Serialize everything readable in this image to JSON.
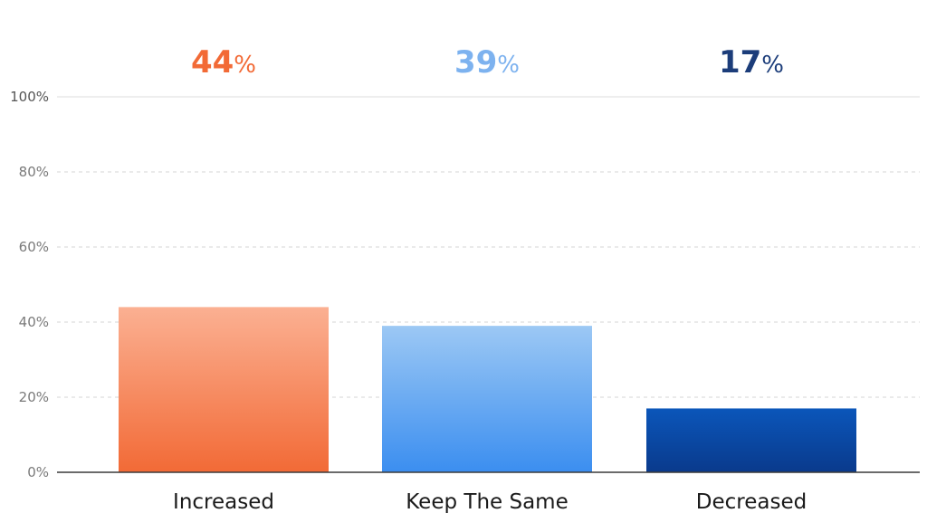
{
  "chart_data": {
    "type": "bar",
    "title": "",
    "xlabel": "",
    "ylabel": "",
    "categories": [
      "Increased",
      "Keep The Same",
      "Decreased"
    ],
    "values": [
      44,
      39,
      17
    ],
    "value_labels": [
      {
        "number": "44",
        "unit": "%"
      },
      {
        "number": "39",
        "unit": "%"
      },
      {
        "number": "17",
        "unit": "%"
      }
    ],
    "ylim": [
      0,
      100
    ],
    "yticks": [
      0,
      20,
      40,
      60,
      80,
      100
    ],
    "ytick_labels": [
      "0%",
      "20%",
      "40%",
      "60%",
      "80%",
      "100%"
    ],
    "grid": true,
    "legend": "none",
    "colors": {
      "increased": {
        "top": "#fbb092",
        "bottom": "#f26a36",
        "label": "#f26a36"
      },
      "keep_the_same": {
        "top": "#9cc8f4",
        "bottom": "#3b8ef0",
        "label": "#7db2ef"
      },
      "decreased": {
        "top": "#0b56ba",
        "bottom": "#0a3a8c",
        "label": "#1c3d7a"
      }
    }
  }
}
